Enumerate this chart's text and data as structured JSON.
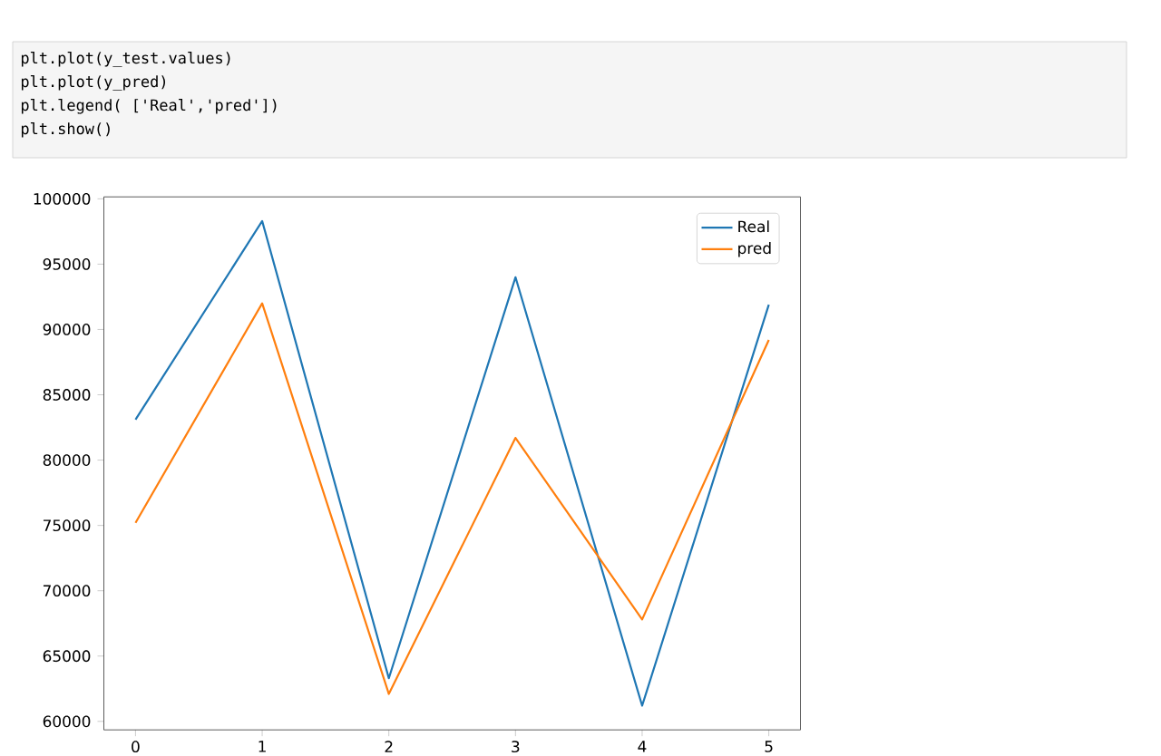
{
  "chart_data": {
    "type": "line",
    "categories": [
      "0",
      "1",
      "2",
      "3",
      "4",
      "5"
    ],
    "series": [
      {
        "name": "Real",
        "color": "#1f77b4",
        "values": [
          83100,
          98300,
          63300,
          94000,
          61200,
          91900
        ]
      },
      {
        "name": "pred",
        "color": "#ff7f0e",
        "values": [
          75200,
          92000,
          62100,
          81700,
          67800,
          89200
        ]
      }
    ],
    "ylim": [
      59350,
      100150
    ],
    "yticks": [
      60000,
      65000,
      70000,
      75000,
      80000,
      85000,
      90000,
      95000,
      100000
    ],
    "legend": "top right",
    "grid": false,
    "marker": "none",
    "line_style": "solid",
    "annotations": [
      "plt.plot(y_test.values)",
      "plt.plot(y_pred)",
      "plt.legend( ['Real','pred'])",
      "plt.show()"
    ]
  }
}
